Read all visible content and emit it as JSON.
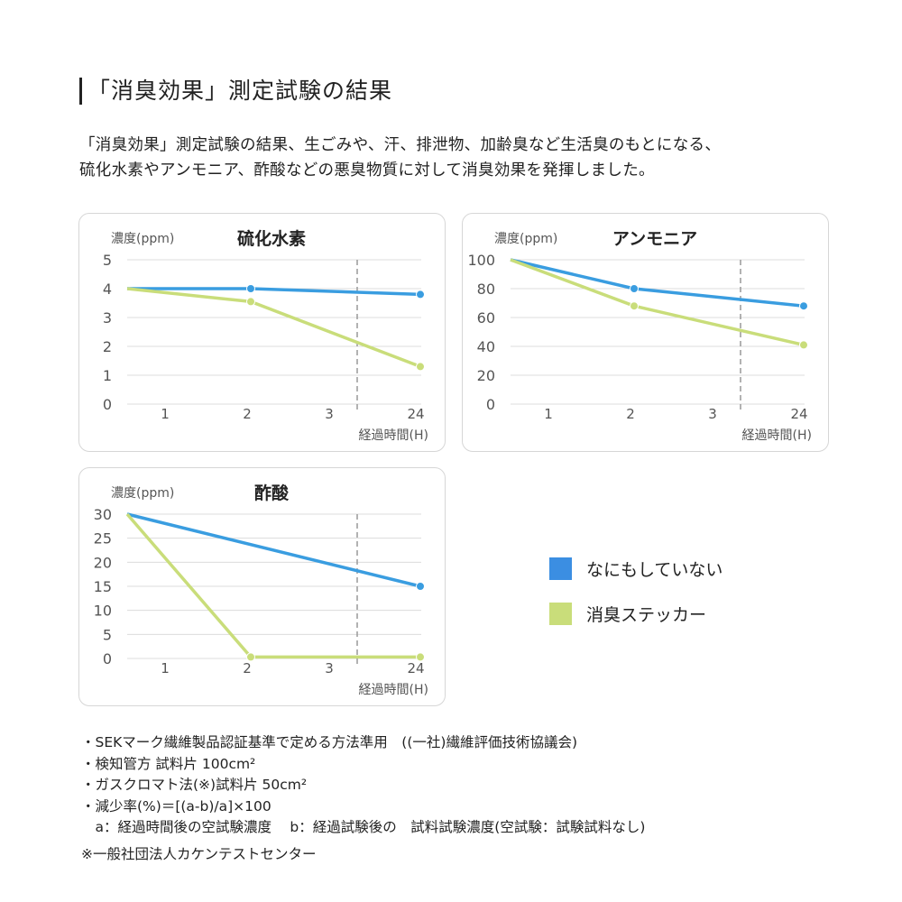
{
  "title": "「消臭効果」測定試験の結果",
  "intro": [
    "「消臭効果」測定試験の結果、生ごみや、汗、排泄物、加齢臭など生活臭のもとになる、",
    "硫化水素やアンモニア、酢酸などの悪臭物質に対して消臭効果を発揮しました。"
  ],
  "colors": {
    "blue": "#3a9de0",
    "green": "#c9dd7a",
    "legend_blue": "#3b8ee2",
    "legend_green": "#c9dd7a"
  },
  "legend": [
    {
      "label": "なにもしていない",
      "color": "#3b8ee2"
    },
    {
      "label": "消臭ステッカー",
      "color": "#c9dd7a"
    }
  ],
  "chart_data": [
    {
      "type": "line",
      "title": "硫化水素",
      "ylabel": "濃度(ppm)",
      "xlabel": "経過時間(H)",
      "x_ticks": [
        "1",
        "2",
        "3",
        "24"
      ],
      "y_ticks": [
        "0",
        "1",
        "2",
        "3",
        "4",
        "5"
      ],
      "ylim": [
        0,
        5
      ],
      "grid": true,
      "x": [
        "0",
        "2",
        "24"
      ],
      "series": [
        {
          "name": "なにもしていない",
          "values": [
            4,
            4,
            3.8
          ]
        },
        {
          "name": "消臭ステッカー",
          "values": [
            4,
            3.55,
            1.3
          ]
        }
      ]
    },
    {
      "type": "line",
      "title": "アンモニア",
      "ylabel": "濃度(ppm)",
      "xlabel": "経過時間(H)",
      "x_ticks": [
        "1",
        "2",
        "3",
        "24"
      ],
      "y_ticks": [
        "0",
        "20",
        "40",
        "60",
        "80",
        "100"
      ],
      "ylim": [
        0,
        100
      ],
      "grid": true,
      "x": [
        "0",
        "2",
        "24"
      ],
      "series": [
        {
          "name": "なにもしていない",
          "values": [
            100,
            80,
            68
          ]
        },
        {
          "name": "消臭ステッカー",
          "values": [
            100,
            68,
            41
          ]
        }
      ]
    },
    {
      "type": "line",
      "title": "酢酸",
      "ylabel": "濃度(ppm)",
      "xlabel": "経過時間(H)",
      "x_ticks": [
        "1",
        "2",
        "3",
        "24"
      ],
      "y_ticks": [
        "0",
        "5",
        "10",
        "15",
        "20",
        "25",
        "30"
      ],
      "ylim": [
        0,
        30
      ],
      "grid": true,
      "x": [
        "0",
        "2",
        "24"
      ],
      "series": [
        {
          "name": "なにもしていない",
          "values": [
            30,
            null,
            15
          ]
        },
        {
          "name": "消臭ステッカー",
          "values": [
            30,
            0.3,
            0.3
          ]
        }
      ]
    }
  ],
  "notes": [
    "・SEKマーク繊維製品認証基準で定める方法準用　((一社)繊維評価技術協議会)",
    "・検知管方 試料片 100cm²",
    "・ガスクロマト法(※)試料片 50cm²",
    "・減少率(%)＝[(a-b)/a]×100",
    "　a：経過時間後の空試験濃度　 b：経過試験後の　試料試験濃度(空試験：試験試料なし)"
  ],
  "source": "※一般社団法人カケンテストセンター"
}
